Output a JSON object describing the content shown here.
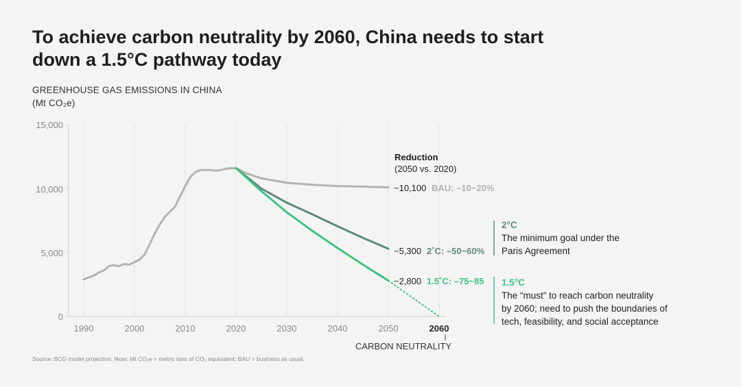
{
  "title": "To achieve carbon neutrality by 2060, China needs to start down a 1.5°C pathway today",
  "subtitle_line1": "GREENHOUSE GAS EMISSIONS IN CHINA",
  "subtitle_line2": "(Mt CO₂e)",
  "chart_data": {
    "type": "line",
    "title": "To achieve carbon neutrality by 2060, China needs to start down a 1.5°C pathway today",
    "ylabel": "GREENHOUSE GAS EMISSIONS IN CHINA (Mt CO₂e)",
    "xlabel": "",
    "xlim": [
      1990,
      2060
    ],
    "ylim": [
      0,
      15000
    ],
    "x_ticks": [
      "1990",
      "2000",
      "2010",
      "2020",
      "2030",
      "2040",
      "2050"
    ],
    "x_tick_bold": "2060",
    "x_annotation": "CARBON NEUTRALITY",
    "y_ticks": [
      "0",
      "5,000",
      "10,000",
      "15,000"
    ],
    "grid": "vertical",
    "series": [
      {
        "name": "Historical",
        "color": "#b3b3b3",
        "x": [
          1990,
          1991,
          1992,
          1993,
          1994,
          1995,
          1996,
          1997,
          1998,
          1999,
          2000,
          2001,
          2002,
          2003,
          2004,
          2005,
          2006,
          2007,
          2008,
          2009,
          2010,
          2011,
          2012,
          2013,
          2014,
          2015,
          2016,
          2017,
          2018,
          2019,
          2020
        ],
        "y": [
          2900,
          3050,
          3200,
          3450,
          3600,
          3950,
          4000,
          3950,
          4100,
          4050,
          4250,
          4450,
          4850,
          5650,
          6500,
          7200,
          7800,
          8200,
          8600,
          9400,
          10200,
          10900,
          11300,
          11450,
          11450,
          11450,
          11400,
          11450,
          11550,
          11600,
          11600
        ]
      },
      {
        "name": "BAU",
        "color": "#b3b3b3",
        "x": [
          2020,
          2022,
          2025,
          2030,
          2035,
          2040,
          2045,
          2050
        ],
        "y": [
          11600,
          11200,
          10800,
          10450,
          10300,
          10200,
          10150,
          10100
        ]
      },
      {
        "name": "2°C",
        "color": "#5f8a77",
        "x": [
          2020,
          2025,
          2030,
          2035,
          2040,
          2045,
          2050
        ],
        "y": [
          11600,
          10000,
          8900,
          8000,
          7050,
          6150,
          5300
        ]
      },
      {
        "name": "1.5°C",
        "color": "#3cc380",
        "x": [
          2020,
          2025,
          2030,
          2035,
          2040,
          2045,
          2050
        ],
        "y": [
          11600,
          9800,
          8150,
          6700,
          5350,
          4050,
          2800
        ]
      },
      {
        "name": "1.5°C to neutrality",
        "color": "#3cc380",
        "style": "dotted",
        "x": [
          2050,
          2060
        ],
        "y": [
          2800,
          0
        ]
      }
    ],
    "annotations": {
      "reduction_head": "Reduction",
      "reduction_sub": "(2050 vs. 2020)",
      "bau_value": "~10,100",
      "bau_label": "BAU: –10~20%",
      "two_value": "~5,300",
      "two_label": "2˚C: –50~60%",
      "onefive_value": "~2,800",
      "onefive_label": "1.5˚C: –75~85"
    }
  },
  "notes": {
    "two": {
      "head": "2°C",
      "line1": "The minimum goal under the",
      "line2": "Paris Agreement"
    },
    "onefive": {
      "head": "1.5°C",
      "line1": "The “must” to reach carbon neutrality",
      "line2": "by 2060; need to push the boundaries of",
      "line3": "tech, feasibility, and social acceptance"
    }
  },
  "colors": {
    "gray_line": "#b3b3b3",
    "two_degree": "#5f8a77",
    "one_five": "#3cc380",
    "axis": "#cfcfcf"
  },
  "footnote": "Source: BCG model projection. Note: Mt CO₂e = metric tons of CO₂ equivalent; BAU = business as usual."
}
